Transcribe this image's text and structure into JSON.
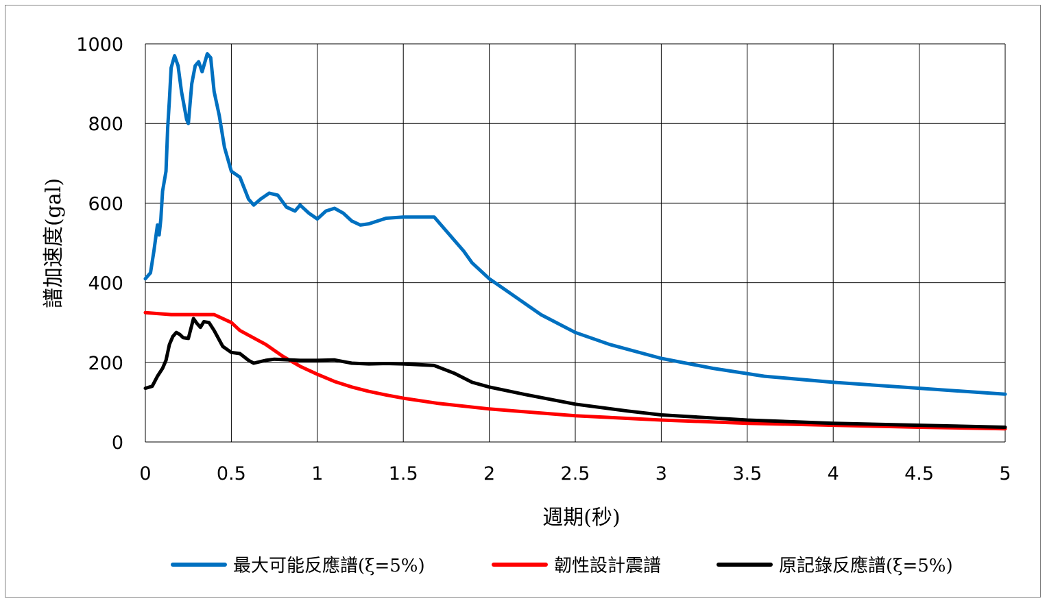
{
  "chart_data": {
    "type": "line",
    "title": "",
    "xlabel": "週期(秒)",
    "ylabel": "譜加速度(gal)",
    "xlim": [
      0,
      5
    ],
    "ylim": [
      0,
      1000
    ],
    "x_ticks": [
      "0",
      "0.5",
      "1",
      "1.5",
      "2",
      "2.5",
      "3",
      "3.5",
      "4",
      "4.5",
      "5"
    ],
    "y_ticks": [
      "0",
      "200",
      "400",
      "600",
      "800",
      "1000"
    ],
    "grid": true,
    "legend_position": "bottom",
    "series": [
      {
        "name": "最大可能反應譜(ξ=5%)",
        "color": "#0070c0",
        "points": [
          [
            0,
            410
          ],
          [
            0.03,
            425
          ],
          [
            0.05,
            480
          ],
          [
            0.07,
            545
          ],
          [
            0.08,
            520
          ],
          [
            0.09,
            560
          ],
          [
            0.1,
            630
          ],
          [
            0.12,
            680
          ],
          [
            0.13,
            790
          ],
          [
            0.14,
            860
          ],
          [
            0.15,
            940
          ],
          [
            0.17,
            970
          ],
          [
            0.19,
            945
          ],
          [
            0.21,
            880
          ],
          [
            0.24,
            810
          ],
          [
            0.25,
            800
          ],
          [
            0.27,
            900
          ],
          [
            0.29,
            945
          ],
          [
            0.31,
            955
          ],
          [
            0.33,
            930
          ],
          [
            0.36,
            975
          ],
          [
            0.38,
            965
          ],
          [
            0.4,
            880
          ],
          [
            0.43,
            820
          ],
          [
            0.46,
            740
          ],
          [
            0.5,
            680
          ],
          [
            0.55,
            665
          ],
          [
            0.6,
            610
          ],
          [
            0.63,
            595
          ],
          [
            0.67,
            610
          ],
          [
            0.72,
            625
          ],
          [
            0.77,
            620
          ],
          [
            0.82,
            590
          ],
          [
            0.87,
            580
          ],
          [
            0.9,
            595
          ],
          [
            0.95,
            575
          ],
          [
            1.0,
            560
          ],
          [
            1.05,
            580
          ],
          [
            1.1,
            587
          ],
          [
            1.15,
            575
          ],
          [
            1.2,
            555
          ],
          [
            1.25,
            545
          ],
          [
            1.3,
            548
          ],
          [
            1.4,
            562
          ],
          [
            1.5,
            565
          ],
          [
            1.68,
            565
          ],
          [
            1.75,
            530
          ],
          [
            1.85,
            480
          ],
          [
            1.9,
            450
          ],
          [
            2.0,
            410
          ],
          [
            2.1,
            380
          ],
          [
            2.3,
            320
          ],
          [
            2.5,
            275
          ],
          [
            2.7,
            245
          ],
          [
            3.0,
            210
          ],
          [
            3.3,
            185
          ],
          [
            3.6,
            165
          ],
          [
            4.0,
            150
          ],
          [
            4.5,
            135
          ],
          [
            5.0,
            120
          ]
        ]
      },
      {
        "name": "韌性設計震譜",
        "color": "#ff0000",
        "points": [
          [
            0,
            325
          ],
          [
            0.15,
            320
          ],
          [
            0.4,
            320
          ],
          [
            0.5,
            300
          ],
          [
            0.55,
            280
          ],
          [
            0.7,
            245
          ],
          [
            0.8,
            215
          ],
          [
            0.9,
            190
          ],
          [
            1.0,
            170
          ],
          [
            1.1,
            152
          ],
          [
            1.2,
            138
          ],
          [
            1.3,
            127
          ],
          [
            1.4,
            118
          ],
          [
            1.5,
            110
          ],
          [
            1.7,
            97
          ],
          [
            2.0,
            83
          ],
          [
            2.5,
            66
          ],
          [
            3.0,
            55
          ],
          [
            3.5,
            47
          ],
          [
            4.0,
            42
          ],
          [
            4.5,
            37
          ],
          [
            5.0,
            33
          ]
        ]
      },
      {
        "name": "原記錄反應譜(ξ=5%)",
        "color": "#000000",
        "points": [
          [
            0,
            135
          ],
          [
            0.04,
            140
          ],
          [
            0.07,
            165
          ],
          [
            0.1,
            185
          ],
          [
            0.12,
            205
          ],
          [
            0.14,
            245
          ],
          [
            0.16,
            265
          ],
          [
            0.18,
            275
          ],
          [
            0.2,
            270
          ],
          [
            0.22,
            262
          ],
          [
            0.25,
            260
          ],
          [
            0.28,
            310
          ],
          [
            0.3,
            298
          ],
          [
            0.32,
            288
          ],
          [
            0.34,
            302
          ],
          [
            0.37,
            300
          ],
          [
            0.4,
            280
          ],
          [
            0.45,
            240
          ],
          [
            0.5,
            225
          ],
          [
            0.55,
            222
          ],
          [
            0.6,
            205
          ],
          [
            0.63,
            198
          ],
          [
            0.7,
            205
          ],
          [
            0.75,
            208
          ],
          [
            0.8,
            207
          ],
          [
            0.9,
            205
          ],
          [
            1.0,
            205
          ],
          [
            1.1,
            206
          ],
          [
            1.2,
            198
          ],
          [
            1.3,
            196
          ],
          [
            1.4,
            197
          ],
          [
            1.5,
            196
          ],
          [
            1.68,
            192
          ],
          [
            1.8,
            172
          ],
          [
            1.9,
            150
          ],
          [
            2.0,
            138
          ],
          [
            2.2,
            120
          ],
          [
            2.5,
            95
          ],
          [
            2.8,
            78
          ],
          [
            3.0,
            68
          ],
          [
            3.5,
            55
          ],
          [
            4.0,
            47
          ],
          [
            4.5,
            42
          ],
          [
            5.0,
            37
          ]
        ]
      }
    ]
  }
}
